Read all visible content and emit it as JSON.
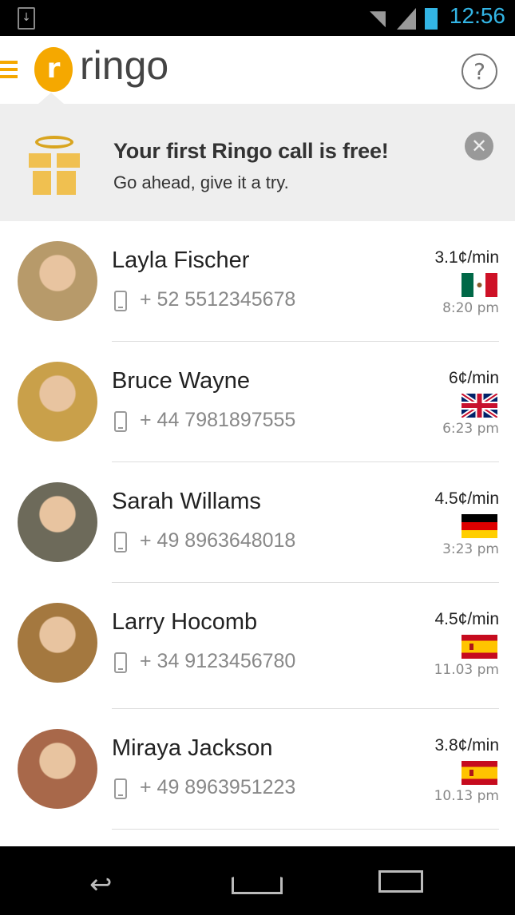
{
  "status_bar": {
    "time": "12:56",
    "icons": [
      "download-icon",
      "wifi-icon",
      "signal-icon",
      "battery-icon"
    ]
  },
  "app_bar": {
    "logo_text": "ringo",
    "help": "?"
  },
  "banner": {
    "title": "Your first Ringo call is free!",
    "subtitle": "Go ahead, give it a try.",
    "close": "✕"
  },
  "contacts": [
    {
      "name": "Layla Fischer",
      "phone": "+ 52 5512345678",
      "rate": "3.1¢/min",
      "country": "mexico",
      "time": "8:20 pm",
      "avatar_color": "#b79a6a"
    },
    {
      "name": "Bruce Wayne",
      "phone": "+ 44 7981897555",
      "rate": "6¢/min",
      "country": "uk",
      "time": "6:23 pm",
      "avatar_color": "#c9a04a"
    },
    {
      "name": "Sarah Willams",
      "phone": "+ 49 8963648018",
      "rate": "4.5¢/min",
      "country": "germany",
      "time": "3:23 pm",
      "avatar_color": "#6d6a5a"
    },
    {
      "name": "Larry Hocomb",
      "phone": "+ 34 9123456780",
      "rate": "4.5¢/min",
      "country": "spain",
      "time": "11.03 pm",
      "avatar_color": "#a4783f"
    },
    {
      "name": "Miraya Jackson",
      "phone": "+ 49 8963951223",
      "rate": "3.8¢/min",
      "country": "spain",
      "time": "10.13 pm",
      "avatar_color": "#a8684a"
    }
  ],
  "colors": {
    "accent": "#f5a800",
    "status_time": "#33b5e5",
    "banner_bg": "#eeeeee"
  }
}
